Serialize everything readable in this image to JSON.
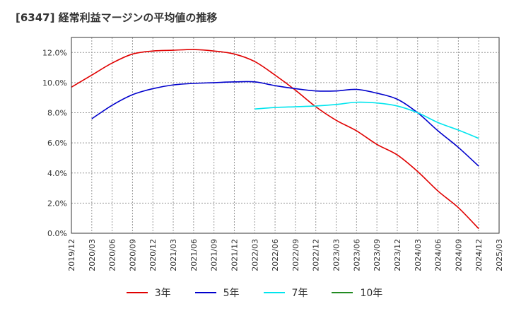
{
  "chart_data": {
    "type": "line",
    "title": "[6347]  経常利益マージンの平均値の推移",
    "xlabel": "",
    "ylabel": "",
    "x": [
      "2019/12",
      "2020/03",
      "2020/06",
      "2020/09",
      "2020/12",
      "2021/03",
      "2021/06",
      "2021/09",
      "2021/12",
      "2022/03",
      "2022/06",
      "2022/09",
      "2022/12",
      "2023/03",
      "2023/06",
      "2023/09",
      "2023/12",
      "2024/03",
      "2024/06",
      "2024/09",
      "2024/12",
      "2025/03"
    ],
    "ylim": [
      0,
      13
    ],
    "yticks": [
      0,
      2,
      4,
      6,
      8,
      10,
      12
    ],
    "ytick_labels": [
      "0.0%",
      "2.0%",
      "4.0%",
      "6.0%",
      "8.0%",
      "10.0%",
      "12.0%"
    ],
    "grid": true,
    "legend_position": "bottom",
    "series": [
      {
        "name": "3年",
        "color": "#e00000",
        "values": [
          9.7,
          10.5,
          11.3,
          11.9,
          12.1,
          12.15,
          12.2,
          12.1,
          11.9,
          11.4,
          10.5,
          9.5,
          8.4,
          7.5,
          6.8,
          5.9,
          5.2,
          4.1,
          2.8,
          1.7,
          0.3,
          null
        ]
      },
      {
        "name": "5年",
        "color": "#0000cc",
        "values": [
          null,
          7.6,
          8.5,
          9.2,
          9.6,
          9.85,
          9.95,
          10.0,
          10.05,
          10.05,
          9.8,
          9.6,
          9.45,
          9.45,
          9.55,
          9.3,
          8.9,
          8.0,
          6.8,
          5.7,
          4.45,
          null
        ]
      },
      {
        "name": "7年",
        "color": "#00e5ee",
        "values": [
          null,
          null,
          null,
          null,
          null,
          null,
          null,
          null,
          null,
          8.25,
          8.35,
          8.4,
          8.45,
          8.55,
          8.7,
          8.65,
          8.45,
          8.0,
          7.35,
          6.85,
          6.3,
          null
        ]
      },
      {
        "name": "10年",
        "color": "#228b22",
        "values": [
          null,
          null,
          null,
          null,
          null,
          null,
          null,
          null,
          null,
          null,
          null,
          null,
          null,
          null,
          null,
          null,
          null,
          null,
          null,
          null,
          null,
          null
        ]
      }
    ]
  }
}
